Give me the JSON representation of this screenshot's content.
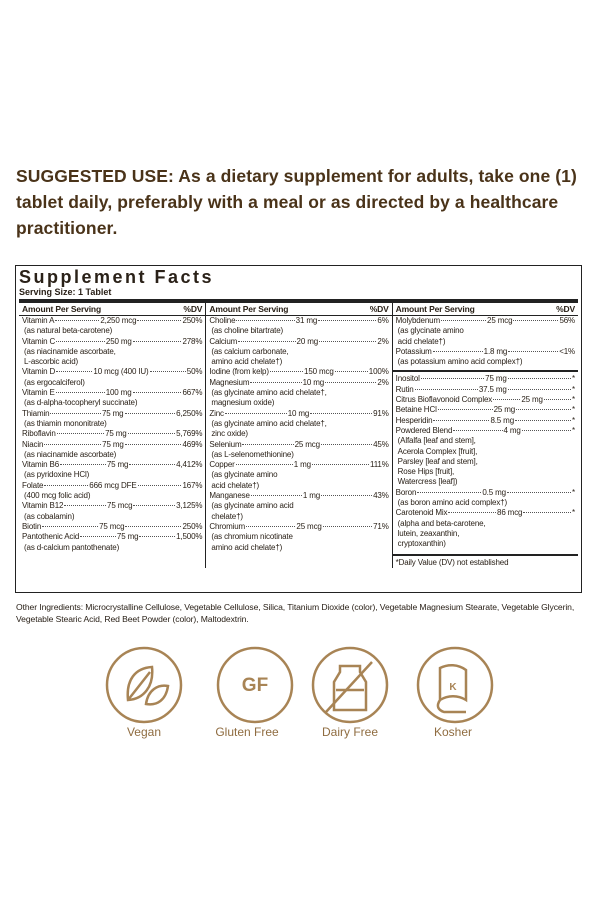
{
  "suggested_use": {
    "label": "SUGGESTED USE:",
    "text": "As a dietary supplement for adults, take one (1) tablet daily, preferably with a meal or as directed by a healthcare practitioner."
  },
  "panel": {
    "title": "Supplement Facts",
    "serving_size": "Serving Size: 1 Tablet",
    "columns": [
      {
        "header_amount": "Amount Per Serving",
        "header_dv": "%DV",
        "groups": [
          {
            "rows": [
              {
                "name": "Vitamin A",
                "amount": "2,250 mcg",
                "dv": "250%",
                "notes": [
                  "(as natural beta-carotene)"
                ]
              },
              {
                "name": "Vitamin C",
                "amount": "250 mg",
                "dv": "278%",
                "notes": [
                  "(as niacinamide ascorbate,",
                  "L-ascorbic acid)"
                ]
              },
              {
                "name": "Vitamin D",
                "amount": "10 mcg (400 IU)",
                "dv": "50%",
                "notes": [
                  "(as ergocalciferol)"
                ]
              },
              {
                "name": "Vitamin E",
                "amount": "100 mg",
                "dv": "667%",
                "notes": [
                  "(as d-alpha-tocopheryl succinate)"
                ]
              },
              {
                "name": "Thiamin",
                "amount": "75 mg",
                "dv": "6,250%",
                "notes": [
                  "(as thiamin mononitrate)"
                ]
              },
              {
                "name": "Riboflavin",
                "amount": "75 mg",
                "dv": "5,769%",
                "notes": []
              },
              {
                "name": "Niacin",
                "amount": "75 mg",
                "dv": "469%",
                "notes": [
                  "(as niacinamide ascorbate)"
                ]
              },
              {
                "name": "Vitamin B6",
                "amount": "75 mg",
                "dv": "4,412%",
                "notes": [
                  "(as pyridoxine HCl)"
                ]
              },
              {
                "name": "Folate",
                "amount": "666 mcg DFE",
                "dv": "167%",
                "notes": [
                  "(400 mcg folic acid)"
                ]
              },
              {
                "name": "Vitamin B12",
                "amount": "75 mcg",
                "dv": "3,125%",
                "notes": [
                  "(as cobalamin)"
                ]
              },
              {
                "name": "Biotin",
                "amount": "75 mcg",
                "dv": "250%",
                "notes": []
              },
              {
                "name": "Pantothenic Acid",
                "amount": "75 mg",
                "dv": "1,500%",
                "notes": [
                  "(as d-calcium pantothenate)"
                ]
              }
            ]
          }
        ]
      },
      {
        "header_amount": "Amount Per Serving",
        "header_dv": "%DV",
        "groups": [
          {
            "rows": [
              {
                "name": "Choline",
                "amount": "31 mg",
                "dv": "6%",
                "notes": [
                  "(as choline bitartrate)"
                ]
              },
              {
                "name": "Calcium",
                "amount": "20 mg",
                "dv": "2%",
                "notes": [
                  "(as calcium carbonate,",
                  "amino acid chelate†)"
                ]
              },
              {
                "name": "Iodine (from kelp)",
                "amount": "150 mcg",
                "dv": "100%",
                "notes": []
              },
              {
                "name": "Magnesium",
                "amount": "10 mg",
                "dv": "2%",
                "notes": [
                  "(as glycinate amino acid chelate†,",
                  "magnesium oxide)"
                ]
              },
              {
                "name": "Zinc",
                "amount": "10 mg",
                "dv": "91%",
                "notes": [
                  "(as glycinate amino acid chelate†,",
                  "zinc oxide)"
                ]
              },
              {
                "name": "Selenium",
                "amount": "25 mcg",
                "dv": "45%",
                "notes": [
                  "(as L-selenomethionine)"
                ]
              },
              {
                "name": "Copper",
                "amount": "1 mg",
                "dv": "111%",
                "notes": [
                  "(as glycinate amino",
                  "acid chelate†)"
                ]
              },
              {
                "name": "Manganese",
                "amount": "1 mg",
                "dv": "43%",
                "notes": [
                  "(as glycinate amino acid",
                  "chelate†)"
                ]
              },
              {
                "name": "Chromium",
                "amount": "25 mcg",
                "dv": "71%",
                "notes": [
                  "(as chromium nicotinate",
                  "amino acid chelate†)"
                ]
              }
            ]
          }
        ]
      },
      {
        "header_amount": "Amount Per Serving",
        "header_dv": "%DV",
        "groups": [
          {
            "rows": [
              {
                "name": "Molybdenum",
                "amount": "25 mcg",
                "dv": "56%",
                "notes": [
                  "(as glycinate amino",
                  "acid chelate†)"
                ]
              },
              {
                "name": "Potassium",
                "amount": "1.8 mg",
                "dv": "<1%",
                "notes": [
                  "(as potassium amino acid complex†)"
                ]
              }
            ]
          },
          {
            "rows": [
              {
                "name": "Inositol",
                "amount": "75 mg",
                "dv": "*",
                "notes": []
              },
              {
                "name": "Rutin",
                "amount": "37.5 mg",
                "dv": "*",
                "notes": []
              },
              {
                "name": "Citrus Bioflavonoid Complex",
                "amount": "25 mg",
                "dv": "*",
                "notes": []
              },
              {
                "name": "Betaine HCl",
                "amount": "25 mg",
                "dv": "*",
                "notes": []
              },
              {
                "name": "Hesperidin",
                "amount": "8.5 mg",
                "dv": "*",
                "notes": []
              },
              {
                "name": "Powdered Blend",
                "amount": "4 mg",
                "dv": "*",
                "notes": [
                  "(Alfalfa [leaf and stem],",
                  "Acerola Complex [fruit],",
                  "Parsley [leaf and stem],",
                  "Rose Hips [fruit],",
                  "Watercress [leaf])"
                ]
              },
              {
                "name": "Boron",
                "amount": "0.5 mg",
                "dv": "*",
                "notes": [
                  "(as boron amino acid complex†)"
                ]
              },
              {
                "name": "Carotenoid Mix",
                "amount": "86 mcg",
                "dv": "*",
                "notes": [
                  "(alpha and beta-carotene,",
                  "lutein, zeaxanthin,",
                  "cryptoxanthin)"
                ]
              }
            ]
          }
        ],
        "footnote": "*Daily Value (DV) not established"
      }
    ]
  },
  "other_ingredients": "Other Ingredients: Microcrystalline Cellulose, Vegetable Cellulose, Silica, Titanium Dioxide (color), Vegetable Magnesium Stearate, Vegetable Glycerin, Vegetable Stearic Acid, Red Beet Powder (color), Maltodextrin.",
  "badges": [
    {
      "label": "Vegan"
    },
    {
      "label": "Gluten Free",
      "icon_text": "GF"
    },
    {
      "label": "Dairy Free"
    },
    {
      "label": "Kosher",
      "icon_text": "K"
    }
  ]
}
